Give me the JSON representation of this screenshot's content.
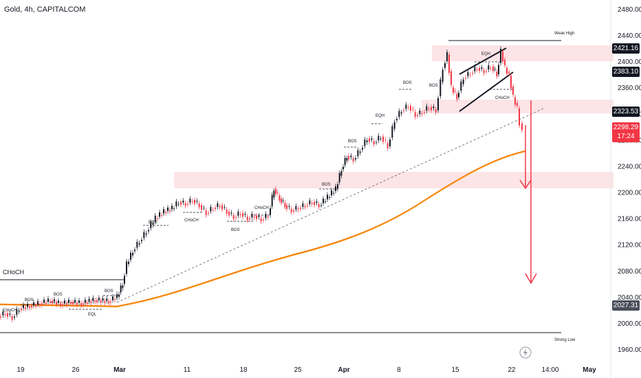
{
  "header": {
    "title": "Gold, 4h, CAPITALCOM"
  },
  "chart_data": {
    "type": "candlestick",
    "ylim": [
      1940,
      2500
    ],
    "y_ticks": [
      "2480.00",
      "2440.00",
      "2400.00",
      "2360.00",
      "2320.00",
      "2280.00",
      "2240.00",
      "2200.00",
      "2160.00",
      "2120.00",
      "2080.00",
      "2040.00",
      "2000.00",
      "1960.00"
    ],
    "x_ticks": [
      "19",
      "26",
      "Mar",
      "11",
      "18",
      "25",
      "Apr",
      "8",
      "15",
      "22",
      "14:00",
      "May"
    ],
    "price_labels": {
      "weak_high": "2421.16",
      "resistance": "2383.10",
      "support": "2323.53",
      "last": "2298.29",
      "countdown": "17:24",
      "ma": "2027.31"
    },
    "annotations": {
      "weak_high": "Weak High",
      "strong_low": "Strong Low",
      "choch_left": "CHoCH",
      "choch_small": "CHoCH",
      "bos": "BOS",
      "eqh": "EQH",
      "eql": "EQL"
    },
    "levels": [
      2421.16,
      2383.1,
      2323.53,
      2027.31
    ],
    "supply_demand_zones": [
      [
        2405,
        2426
      ],
      [
        2318,
        2338
      ],
      [
        2207,
        2232
      ]
    ],
    "colors": {
      "up": "#131722",
      "down": "#f23645",
      "ma": "#f5a623",
      "zone": "#f8d7da",
      "arrow": "#f23645"
    }
  }
}
